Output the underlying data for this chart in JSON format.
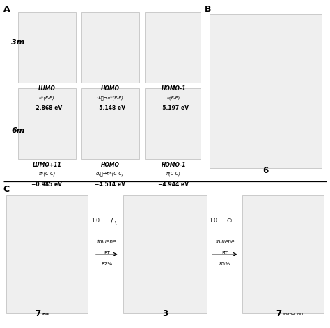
{
  "bg_color": "#ffffff",
  "text_color": "#000000",
  "panel_A": "A",
  "panel_B": "B",
  "panel_C": "C",
  "label_3m": "3m",
  "label_6m": "6m",
  "mo_3m": [
    [
      "LUMO",
      "π*(P-P)",
      "−2.868 eV"
    ],
    [
      "HOMO",
      "dᵧᵺ→π*(P-P)",
      "−5.148 eV"
    ],
    [
      "HOMO-1",
      "π(P-P)",
      "−5.197 eV"
    ]
  ],
  "mo_6m": [
    [
      "LUMO+11",
      "π*(C-C)",
      "−0.985 eV"
    ],
    [
      "HOMO",
      "dᵧᵺ→π*(C-C)",
      "−4.514 eV"
    ],
    [
      "HOMO-1",
      "π(C-C)",
      "−4.944 eV"
    ]
  ],
  "label_6": "6",
  "label_3": "3",
  "left_reagent": "1.0",
  "left_solvent": "toluene",
  "left_condition": "RT",
  "left_yield": "82%",
  "right_reagent": "1.0",
  "right_solvent": "toluene",
  "right_condition": "RT",
  "right_yield": "85%",
  "placeholder_gray": "#efefef",
  "placeholder_edge": "#aaaaaa"
}
